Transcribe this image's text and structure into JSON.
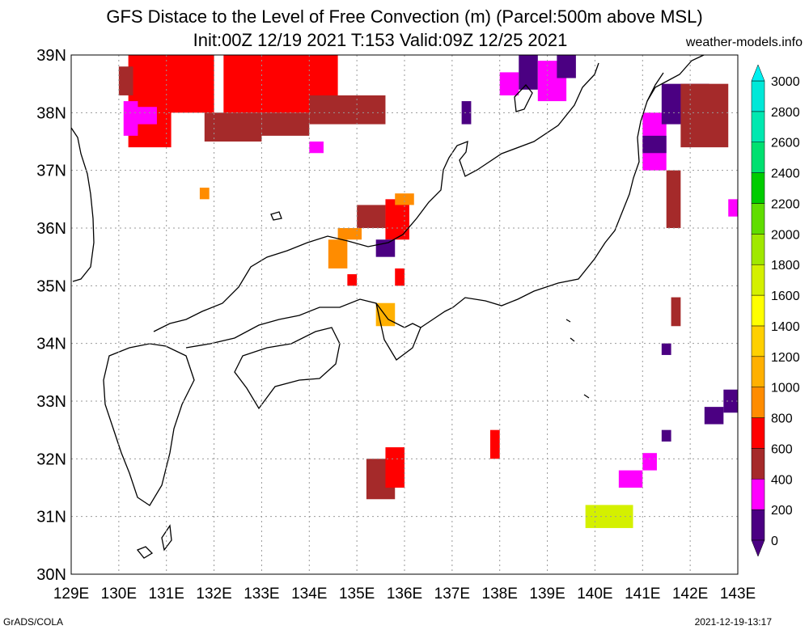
{
  "header": {
    "title_line1": "GFS Distace to the Level of Free Convection (m) (Parcel:500m above MSL)",
    "title_line2": "Init:00Z 12/19 2021 T:153 Valid:09Z 12/25 2021",
    "site": "weather-models.info"
  },
  "footer": {
    "left": "GrADS/COLA",
    "right": "2021-12-19-13:17"
  },
  "map": {
    "lat_labels": [
      "39N",
      "38N",
      "37N",
      "36N",
      "35N",
      "34N",
      "33N",
      "32N",
      "31N",
      "30N"
    ],
    "lon_labels": [
      "129E",
      "130E",
      "131E",
      "132E",
      "133E",
      "134E",
      "135E",
      "136E",
      "137E",
      "138E",
      "139E",
      "140E",
      "141E",
      "142E",
      "143E"
    ],
    "lat_range": [
      30,
      39
    ],
    "lon_range": [
      129,
      143
    ],
    "grid": "dotted"
  },
  "colorbar": {
    "labels": [
      "0",
      "200",
      "400",
      "600",
      "800",
      "1000",
      "1200",
      "1400",
      "1600",
      "1800",
      "2000",
      "2200",
      "2400",
      "2600",
      "2800",
      "3000"
    ],
    "colors": [
      "#4b0082",
      "#ff00ff",
      "#a52a2a",
      "#ff0000",
      "#ff8c00",
      "#ffb000",
      "#ffd000",
      "#ffff00",
      "#d4f000",
      "#a0e800",
      "#60dd00",
      "#00cc00",
      "#00e070",
      "#00e8b0",
      "#00e8d8",
      "#00f0f0"
    ]
  }
}
